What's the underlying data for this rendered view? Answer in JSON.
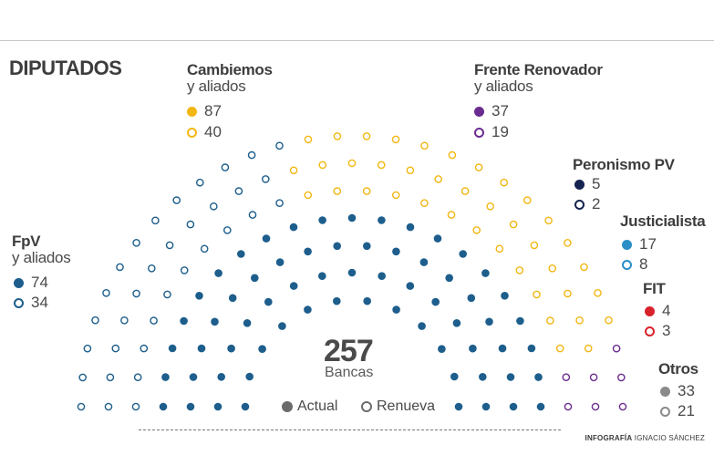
{
  "title": "DIPUTADOS",
  "center": {
    "number": "257",
    "label": "Bancas"
  },
  "legend": {
    "actual": "Actual",
    "renueva": "Renueva"
  },
  "credit": {
    "bold": "INFOGRAFÍA",
    "name": "IGNACIO SÁNCHEZ"
  },
  "colors": {
    "fpv": "#1d5e8c",
    "cambiemos": "#f2b714",
    "frente_renovador": "#6b2c8f",
    "peronismo_pv": "#14234f",
    "justicialista": "#2a8fc7",
    "fit": "#d9212c",
    "otros": "#8a8a8a"
  },
  "parties": {
    "fpv": {
      "name1": "FpV",
      "name2": "y aliados",
      "actual": "74",
      "renueva": "34"
    },
    "cambiemos": {
      "name1": "Cambiemos",
      "name2": "y aliados",
      "actual": "87",
      "renueva": "40"
    },
    "frente_renovador": {
      "name1": "Frente Renovador",
      "name2": "y aliados",
      "actual": "37",
      "renueva": "19"
    },
    "peronismo_pv": {
      "name1": "Peronismo PV",
      "actual": "5",
      "renueva": "2"
    },
    "justicialista": {
      "name1": "Justicialista",
      "actual": "17",
      "renueva": "8"
    },
    "fit": {
      "name1": "FIT",
      "actual": "4",
      "renueva": "3"
    },
    "otros": {
      "name1": "Otros",
      "actual": "33",
      "renueva": "21"
    }
  },
  "chart_data": {
    "type": "parliament",
    "total_seats": 257,
    "series": [
      {
        "name": "FpV y aliados",
        "actual": 74,
        "renueva": 34
      },
      {
        "name": "Cambiemos y aliados",
        "actual": 87,
        "renueva": 40
      },
      {
        "name": "Frente Renovador y aliados",
        "actual": 37,
        "renueva": 19
      },
      {
        "name": "Peronismo PV",
        "actual": 5,
        "renueva": 2
      },
      {
        "name": "Justicialista",
        "actual": 17,
        "renueva": 8
      },
      {
        "name": "FIT",
        "actual": 4,
        "renueva": 3
      },
      {
        "name": "Otros",
        "actual": 33,
        "renueva": 21
      }
    ]
  }
}
